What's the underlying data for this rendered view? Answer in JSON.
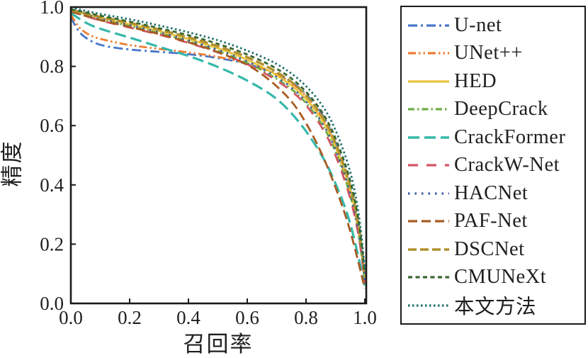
{
  "figure": {
    "kind": "precision-recall curves",
    "background": "#ffffff",
    "frame_color": "#1a1a1a"
  },
  "chart_data": {
    "type": "line",
    "title": "",
    "xlabel": "召回率",
    "ylabel": "精度",
    "xlim": [
      0.0,
      1.0
    ],
    "ylim": [
      0.0,
      1.0
    ],
    "xticks": [
      "0.0",
      "0.2",
      "0.4",
      "0.6",
      "0.8",
      "1.0"
    ],
    "yticks": [
      "0.0",
      "0.2",
      "0.4",
      "0.6",
      "0.8",
      "1.0"
    ],
    "grid": false,
    "legend_position": "right",
    "series": [
      {
        "name": "U-net",
        "color": "#4876C8",
        "dash": "13 5 3 5",
        "width": 2.8,
        "points": [
          [
            0,
            0.965
          ],
          [
            0.03,
            0.915
          ],
          [
            0.07,
            0.885
          ],
          [
            0.12,
            0.868
          ],
          [
            0.2,
            0.857
          ],
          [
            0.3,
            0.849
          ],
          [
            0.4,
            0.841
          ],
          [
            0.5,
            0.828
          ],
          [
            0.6,
            0.808
          ],
          [
            0.7,
            0.775
          ],
          [
            0.78,
            0.725
          ],
          [
            0.85,
            0.645
          ],
          [
            0.9,
            0.545
          ],
          [
            0.95,
            0.39
          ],
          [
            0.98,
            0.25
          ],
          [
            1,
            0.085
          ]
        ]
      },
      {
        "name": "UNet++",
        "color": "#ED7D31",
        "dash": "11 4 2.5 4 2.5 4",
        "width": 2.8,
        "points": [
          [
            0,
            0.975
          ],
          [
            0.03,
            0.93
          ],
          [
            0.07,
            0.903
          ],
          [
            0.12,
            0.888
          ],
          [
            0.2,
            0.872
          ],
          [
            0.3,
            0.859
          ],
          [
            0.4,
            0.847
          ],
          [
            0.5,
            0.832
          ],
          [
            0.6,
            0.81
          ],
          [
            0.7,
            0.773
          ],
          [
            0.78,
            0.72
          ],
          [
            0.85,
            0.635
          ],
          [
            0.9,
            0.53
          ],
          [
            0.95,
            0.37
          ],
          [
            0.98,
            0.23
          ],
          [
            1,
            0.065
          ]
        ]
      },
      {
        "name": "HED",
        "color": "#E8C33C",
        "dash": "",
        "width": 2.8,
        "points": [
          [
            0,
            0.99
          ],
          [
            0.1,
            0.964
          ],
          [
            0.2,
            0.942
          ],
          [
            0.3,
            0.919
          ],
          [
            0.4,
            0.892
          ],
          [
            0.5,
            0.861
          ],
          [
            0.6,
            0.822
          ],
          [
            0.7,
            0.77
          ],
          [
            0.78,
            0.71
          ],
          [
            0.85,
            0.625
          ],
          [
            0.9,
            0.53
          ],
          [
            0.95,
            0.385
          ],
          [
            0.98,
            0.245
          ],
          [
            1,
            0.075
          ]
        ]
      },
      {
        "name": "DeepCrack",
        "color": "#6FAC46",
        "dash": "9 4 2.5 4",
        "width": 2.8,
        "points": [
          [
            0,
            0.985
          ],
          [
            0.1,
            0.958
          ],
          [
            0.2,
            0.936
          ],
          [
            0.3,
            0.912
          ],
          [
            0.4,
            0.884
          ],
          [
            0.5,
            0.852
          ],
          [
            0.6,
            0.812
          ],
          [
            0.7,
            0.758
          ],
          [
            0.78,
            0.697
          ],
          [
            0.85,
            0.61
          ],
          [
            0.9,
            0.512
          ],
          [
            0.95,
            0.365
          ],
          [
            0.98,
            0.225
          ],
          [
            1,
            0.07
          ]
        ]
      },
      {
        "name": "CrackFormer",
        "color": "#35B8AA",
        "dash": "16 7",
        "width": 3.2,
        "points": [
          [
            0,
            0.98
          ],
          [
            0.05,
            0.948
          ],
          [
            0.1,
            0.927
          ],
          [
            0.2,
            0.897
          ],
          [
            0.3,
            0.866
          ],
          [
            0.4,
            0.835
          ],
          [
            0.5,
            0.798
          ],
          [
            0.6,
            0.752
          ],
          [
            0.7,
            0.69
          ],
          [
            0.78,
            0.607
          ],
          [
            0.85,
            0.505
          ],
          [
            0.9,
            0.405
          ],
          [
            0.95,
            0.27
          ],
          [
            1,
            0.06
          ]
        ]
      },
      {
        "name": "CrackW-Net",
        "color": "#D25565",
        "dash": "14 12",
        "width": 2.8,
        "points": [
          [
            0,
            0.985
          ],
          [
            0.1,
            0.955
          ],
          [
            0.2,
            0.931
          ],
          [
            0.3,
            0.907
          ],
          [
            0.4,
            0.879
          ],
          [
            0.5,
            0.847
          ],
          [
            0.6,
            0.807
          ],
          [
            0.7,
            0.752
          ],
          [
            0.78,
            0.69
          ],
          [
            0.85,
            0.6
          ],
          [
            0.9,
            0.5
          ],
          [
            0.95,
            0.355
          ],
          [
            0.98,
            0.22
          ],
          [
            1,
            0.07
          ]
        ]
      },
      {
        "name": "HACNet",
        "color": "#3B5BA5",
        "dash": "2.5 7",
        "width": 2.8,
        "points": [
          [
            0,
            0.988
          ],
          [
            0.1,
            0.961
          ],
          [
            0.2,
            0.939
          ],
          [
            0.3,
            0.915
          ],
          [
            0.4,
            0.888
          ],
          [
            0.5,
            0.856
          ],
          [
            0.6,
            0.817
          ],
          [
            0.7,
            0.764
          ],
          [
            0.78,
            0.702
          ],
          [
            0.85,
            0.617
          ],
          [
            0.9,
            0.52
          ],
          [
            0.95,
            0.375
          ],
          [
            0.98,
            0.235
          ],
          [
            1,
            0.08
          ]
        ]
      },
      {
        "name": "PAF-Net",
        "color": "#A85B22",
        "dash": "13 6",
        "width": 2.8,
        "points": [
          [
            0,
            0.985
          ],
          [
            0.1,
            0.956
          ],
          [
            0.2,
            0.933
          ],
          [
            0.3,
            0.909
          ],
          [
            0.4,
            0.881
          ],
          [
            0.5,
            0.848
          ],
          [
            0.6,
            0.805
          ],
          [
            0.68,
            0.75
          ],
          [
            0.75,
            0.682
          ],
          [
            0.8,
            0.608
          ],
          [
            0.85,
            0.512
          ],
          [
            0.9,
            0.392
          ],
          [
            0.95,
            0.245
          ],
          [
            1,
            0.05
          ]
        ]
      },
      {
        "name": "DSCNet",
        "color": "#B0902F",
        "dash": "12 5",
        "width": 3.4,
        "points": [
          [
            0,
            0.99
          ],
          [
            0.1,
            0.967
          ],
          [
            0.2,
            0.947
          ],
          [
            0.3,
            0.924
          ],
          [
            0.4,
            0.898
          ],
          [
            0.5,
            0.868
          ],
          [
            0.6,
            0.831
          ],
          [
            0.7,
            0.781
          ],
          [
            0.78,
            0.722
          ],
          [
            0.85,
            0.638
          ],
          [
            0.9,
            0.542
          ],
          [
            0.95,
            0.398
          ],
          [
            0.98,
            0.255
          ],
          [
            1,
            0.09
          ]
        ]
      },
      {
        "name": "CMUNeXt",
        "color": "#39682F",
        "dash": "6 4.5",
        "width": 2.8,
        "points": [
          [
            0,
            0.993
          ],
          [
            0.1,
            0.971
          ],
          [
            0.2,
            0.951
          ],
          [
            0.3,
            0.929
          ],
          [
            0.4,
            0.905
          ],
          [
            0.5,
            0.876
          ],
          [
            0.6,
            0.84
          ],
          [
            0.7,
            0.792
          ],
          [
            0.78,
            0.734
          ],
          [
            0.85,
            0.652
          ],
          [
            0.9,
            0.558
          ],
          [
            0.95,
            0.415
          ],
          [
            0.98,
            0.27
          ],
          [
            1,
            0.1
          ]
        ]
      },
      {
        "name": "本文方法",
        "color": "#1F6F6B",
        "dash": "2.5 3.5",
        "width": 2.8,
        "points": [
          [
            0,
            0.998
          ],
          [
            0.1,
            0.977
          ],
          [
            0.2,
            0.959
          ],
          [
            0.3,
            0.938
          ],
          [
            0.4,
            0.915
          ],
          [
            0.5,
            0.888
          ],
          [
            0.6,
            0.853
          ],
          [
            0.7,
            0.808
          ],
          [
            0.78,
            0.752
          ],
          [
            0.85,
            0.675
          ],
          [
            0.9,
            0.585
          ],
          [
            0.95,
            0.445
          ],
          [
            0.98,
            0.295
          ],
          [
            1,
            0.115
          ]
        ]
      }
    ]
  }
}
